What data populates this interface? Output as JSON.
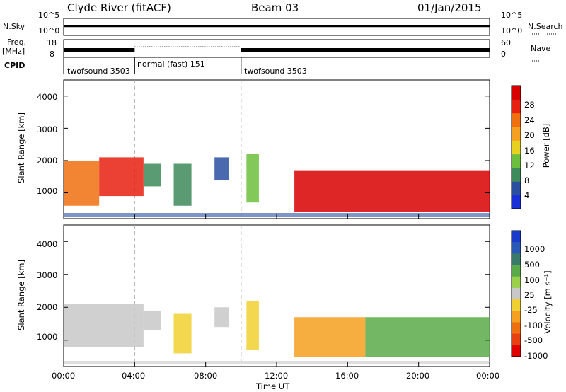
{
  "header": {
    "station": "Clyde River (fitACF)",
    "beam": "Beam 03",
    "date": "01/Jan/2015"
  },
  "left_labels": {
    "nsky": "N.Sky",
    "freq_top": "Freq.",
    "freq_unit": "[MHz]",
    "cpid": "CPID"
  },
  "right_labels": {
    "nsearch": "N.Search",
    "nave": "Nave"
  },
  "nsky_ticks": [
    "10^5",
    "10^0"
  ],
  "nsearch_ticks": [
    "10^5",
    "10^0"
  ],
  "freq_ticks": [
    "18",
    "8"
  ],
  "nave_ticks": [
    "60",
    "0"
  ],
  "cpid_segments": [
    {
      "label": "twofsound 3503",
      "start_hour": 0
    },
    {
      "label": "normal (fast) 151",
      "start_hour": 4
    },
    {
      "label": "twofsound 3503",
      "start_hour": 10
    }
  ],
  "x_ticks": [
    "00:00",
    "04:00",
    "08:00",
    "12:00",
    "16:00",
    "20:00",
    "00:00"
  ],
  "x_label": "Time UT",
  "y_ticks": [
    "1000",
    "2000",
    "3000",
    "4000"
  ],
  "y_label": "Slant Range [km]",
  "power_colorbar": {
    "label": "Power [dB]",
    "ticks": [
      "4",
      "8",
      "12",
      "16",
      "20",
      "24",
      "28"
    ],
    "colors": [
      "#1a2fd8",
      "#2a4fa0",
      "#3d8a5a",
      "#6cbf3c",
      "#e8d020",
      "#f5a020",
      "#f07010",
      "#e82010",
      "#d80000"
    ]
  },
  "velocity_colorbar": {
    "label": "Velocity [m s⁻¹]",
    "ticks": [
      "1000",
      "500",
      "100",
      "25",
      "-25",
      "-100",
      "-500",
      "-1000"
    ],
    "colors": [
      "#1a3acc",
      "#2a5ab8",
      "#3a7a6a",
      "#5aaa4a",
      "#9ad04a",
      "#c8c8c8",
      "#f0d030",
      "#f5a020",
      "#f07010",
      "#e84010",
      "#e00000"
    ]
  },
  "chart_data": {
    "type": "heatmap",
    "x_range_hours": [
      0,
      24
    ],
    "y_range_km": [
      200,
      4500
    ],
    "panels": [
      {
        "name": "Power",
        "unit": "dB",
        "echo_regions": [
          {
            "t_start": 0.0,
            "t_end": 2.0,
            "r_low": 600,
            "r_high": 2000,
            "value": 24
          },
          {
            "t_start": 2.0,
            "t_end": 4.5,
            "r_low": 900,
            "r_high": 2100,
            "value": 26
          },
          {
            "t_start": 4.5,
            "t_end": 5.5,
            "r_low": 1200,
            "r_high": 1900,
            "value": 12
          },
          {
            "t_start": 6.2,
            "t_end": 7.2,
            "r_low": 600,
            "r_high": 1900,
            "value": 10
          },
          {
            "t_start": 8.5,
            "t_end": 9.3,
            "r_low": 1400,
            "r_high": 2100,
            "value": 8
          },
          {
            "t_start": 10.3,
            "t_end": 11.0,
            "r_low": 700,
            "r_high": 2200,
            "value": 14
          },
          {
            "t_start": 13.0,
            "t_end": 24.0,
            "r_low": 400,
            "r_high": 1700,
            "value": 28
          }
        ]
      },
      {
        "name": "Velocity",
        "unit": "m s^-1",
        "echo_regions": [
          {
            "t_start": 0.0,
            "t_end": 4.5,
            "r_low": 800,
            "r_high": 2100,
            "value": 100
          },
          {
            "t_start": 4.5,
            "t_end": 5.5,
            "r_low": 1300,
            "r_high": 1900,
            "value": 25
          },
          {
            "t_start": 6.2,
            "t_end": 7.2,
            "r_low": 600,
            "r_high": 1800,
            "value": -100
          },
          {
            "t_start": 8.5,
            "t_end": 9.3,
            "r_low": 1400,
            "r_high": 2000,
            "value": 25
          },
          {
            "t_start": 10.3,
            "t_end": 11.0,
            "r_low": 700,
            "r_high": 2200,
            "value": -100
          },
          {
            "t_start": 13.0,
            "t_end": 17.0,
            "r_low": 500,
            "r_high": 1700,
            "value": -300
          },
          {
            "t_start": 17.0,
            "t_end": 24.0,
            "r_low": 500,
            "r_high": 1700,
            "value": 400
          }
        ]
      }
    ]
  }
}
